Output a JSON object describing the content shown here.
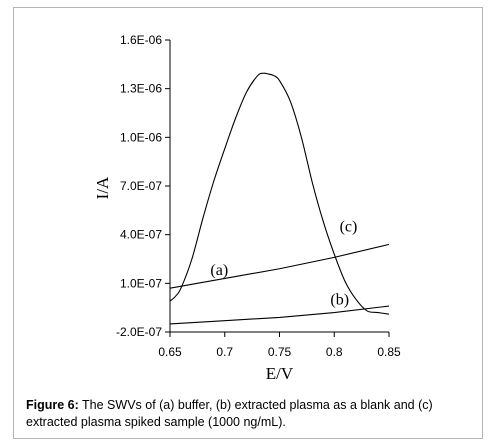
{
  "chart_data": {
    "type": "line",
    "xlabel": "E/V",
    "ylabel": "I/A",
    "xlim": [
      0.65,
      0.85
    ],
    "ylim": [
      -2e-07,
      1.6e-06
    ],
    "x_ticks": [
      0.65,
      0.7,
      0.75,
      0.8,
      0.85
    ],
    "x_tick_labels": [
      "0.65",
      "0.7",
      "0.75",
      "0.8",
      "0.85"
    ],
    "y_ticks": [
      -2e-07,
      1e-07,
      4e-07,
      7e-07,
      1e-06,
      1.3e-06,
      1.6e-06
    ],
    "y_tick_labels": [
      "-2.0E-07",
      "1.0E-07",
      "4.0E-07",
      "7.0E-07",
      "1.0E-06",
      "1.3E-06",
      "1.6E-06"
    ],
    "grid": false,
    "series": [
      {
        "name": "(a)",
        "x": [
          0.65,
          0.7,
          0.75,
          0.8,
          0.85
        ],
        "y": [
          7e-08,
          1.3e-07,
          1.9e-07,
          2.6e-07,
          3.4e-07
        ]
      },
      {
        "name": "(b)",
        "x": [
          0.65,
          0.7,
          0.75,
          0.8,
          0.85
        ],
        "y": [
          -1.5e-07,
          -1.3e-07,
          -1.1e-07,
          -8e-08,
          -4e-08
        ]
      },
      {
        "name": "(c)",
        "x": [
          0.65,
          0.655,
          0.66,
          0.67,
          0.68,
          0.69,
          0.7,
          0.71,
          0.72,
          0.73,
          0.735,
          0.74,
          0.745,
          0.75,
          0.76,
          0.77,
          0.78,
          0.79,
          0.8,
          0.81,
          0.82,
          0.83,
          0.84,
          0.85
        ],
        "y": [
          -1e-08,
          2e-08,
          7e-08,
          2.5e-07,
          5e-07,
          7.3e-07,
          9.3e-07,
          1.12e-06,
          1.28e-06,
          1.38e-06,
          1.395e-06,
          1.39e-06,
          1.38e-06,
          1.35e-06,
          1.22e-06,
          1e-06,
          7.2e-07,
          4.8e-07,
          2.8e-07,
          1.1e-07,
          0.0,
          -7e-08,
          -8e-08,
          -9e-08
        ]
      }
    ],
    "annotations": [
      {
        "text": "(a)",
        "x": 0.695,
        "y": 1.5e-07
      },
      {
        "text": "(b)",
        "x": 0.805,
        "y": -3e-08
      },
      {
        "text": "(c)",
        "x": 0.813,
        "y": 4.2e-07
      }
    ]
  },
  "caption": {
    "label": "Figure 6:",
    "text": " The SWVs of (a) buffer, (b) extracted plasma as a blank and (c) extracted plasma spiked sample (1000 ng/mL)."
  }
}
